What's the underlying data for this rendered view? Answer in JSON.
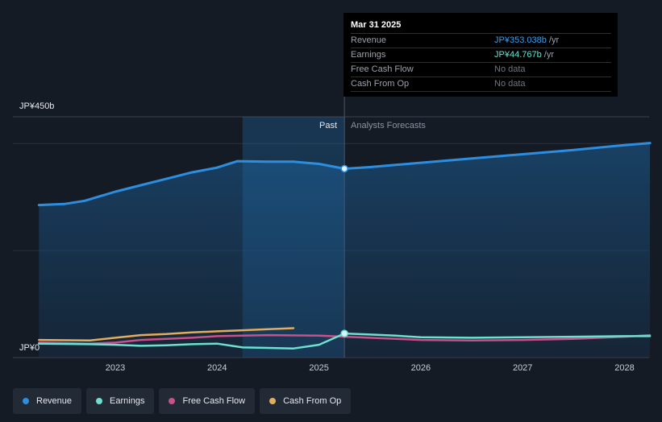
{
  "chart_data": {
    "type": "line",
    "y_axis": {
      "top_label": "JP¥450b",
      "bottom_label": "JP¥0",
      "ylim": [
        0,
        450
      ]
    },
    "x_ticks": [
      "2023",
      "2024",
      "2025",
      "2026",
      "2027",
      "2028"
    ],
    "past_label": "Past",
    "forecast_label": "Analysts Forecasts",
    "divider_date": 2025.25,
    "series": [
      {
        "name": "Revenue",
        "color": "#2d8ee0",
        "points": [
          [
            2022.25,
            285
          ],
          [
            2022.5,
            287
          ],
          [
            2022.7,
            293
          ],
          [
            2023.0,
            310
          ],
          [
            2023.25,
            322
          ],
          [
            2023.5,
            334
          ],
          [
            2023.75,
            346
          ],
          [
            2024.0,
            355
          ],
          [
            2024.2,
            367
          ],
          [
            2024.5,
            366
          ],
          [
            2024.75,
            366
          ],
          [
            2025.0,
            362
          ],
          [
            2025.25,
            353
          ],
          [
            2025.5,
            356
          ],
          [
            2025.75,
            360
          ],
          [
            2026.0,
            364
          ],
          [
            2026.5,
            372
          ],
          [
            2027.0,
            380
          ],
          [
            2027.5,
            388
          ],
          [
            2028.0,
            397
          ],
          [
            2028.25,
            401
          ]
        ]
      },
      {
        "name": "Earnings",
        "color": "#6ee0d0",
        "points": [
          [
            2022.25,
            26
          ],
          [
            2022.75,
            25
          ],
          [
            2023.0,
            24
          ],
          [
            2023.25,
            22
          ],
          [
            2023.5,
            23
          ],
          [
            2023.75,
            25
          ],
          [
            2024.0,
            26
          ],
          [
            2024.25,
            19
          ],
          [
            2024.5,
            18
          ],
          [
            2024.75,
            17
          ],
          [
            2025.0,
            24
          ],
          [
            2025.25,
            45
          ],
          [
            2025.5,
            43
          ],
          [
            2025.75,
            41
          ],
          [
            2026.0,
            38
          ],
          [
            2026.5,
            37
          ],
          [
            2027.0,
            38
          ],
          [
            2027.5,
            39
          ],
          [
            2028.0,
            40
          ],
          [
            2028.25,
            40
          ]
        ]
      },
      {
        "name": "Free Cash Flow",
        "color": "#c9508a",
        "points": [
          [
            2022.25,
            28
          ],
          [
            2022.75,
            26
          ],
          [
            2023.0,
            28
          ],
          [
            2023.25,
            33
          ],
          [
            2023.75,
            37
          ],
          [
            2024.0,
            40
          ],
          [
            2024.5,
            42
          ],
          [
            2025.0,
            41
          ],
          [
            2025.5,
            37
          ],
          [
            2026.0,
            33
          ],
          [
            2026.5,
            32
          ],
          [
            2027.0,
            33
          ],
          [
            2027.5,
            35
          ],
          [
            2028.0,
            39
          ],
          [
            2028.25,
            42
          ]
        ]
      },
      {
        "name": "Cash From Op",
        "color": "#e3ad5e",
        "points": [
          [
            2022.25,
            33
          ],
          [
            2022.75,
            32
          ],
          [
            2023.0,
            37
          ],
          [
            2023.25,
            42
          ],
          [
            2023.5,
            44
          ],
          [
            2023.75,
            47
          ],
          [
            2024.0,
            49
          ],
          [
            2024.25,
            51
          ],
          [
            2024.5,
            53
          ],
          [
            2024.75,
            55
          ]
        ]
      }
    ]
  },
  "tooltip": {
    "date": "Mar 31 2025",
    "rows": [
      {
        "label": "Revenue",
        "value": "JP¥353.038b",
        "unit": " /yr"
      },
      {
        "label": "Earnings",
        "value": "JP¥44.767b",
        "unit": " /yr"
      },
      {
        "label": "Free Cash Flow",
        "value": "No data"
      },
      {
        "label": "Cash From Op",
        "value": "No data"
      }
    ]
  },
  "legend": [
    {
      "label": "Revenue",
      "color": "#2d8ee0"
    },
    {
      "label": "Earnings",
      "color": "#6ee0d0"
    },
    {
      "label": "Free Cash Flow",
      "color": "#c9508a"
    },
    {
      "label": "Cash From Op",
      "color": "#e3ad5e"
    }
  ]
}
